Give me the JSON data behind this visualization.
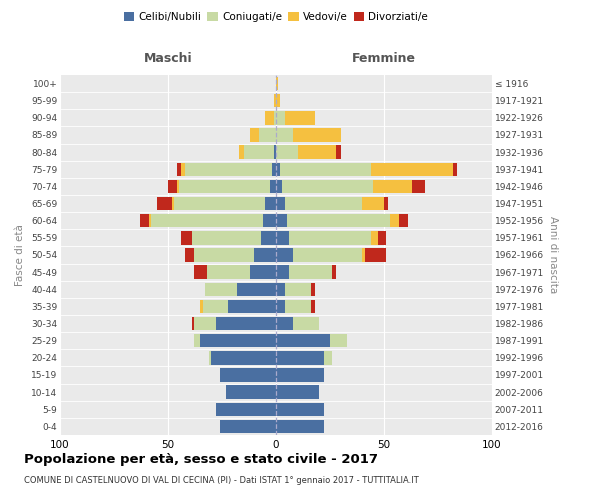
{
  "age_groups": [
    "0-4",
    "5-9",
    "10-14",
    "15-19",
    "20-24",
    "25-29",
    "30-34",
    "35-39",
    "40-44",
    "45-49",
    "50-54",
    "55-59",
    "60-64",
    "65-69",
    "70-74",
    "75-79",
    "80-84",
    "85-89",
    "90-94",
    "95-99",
    "100+"
  ],
  "birth_years": [
    "2012-2016",
    "2007-2011",
    "2002-2006",
    "1997-2001",
    "1992-1996",
    "1987-1991",
    "1982-1986",
    "1977-1981",
    "1972-1976",
    "1967-1971",
    "1962-1966",
    "1957-1961",
    "1952-1956",
    "1947-1951",
    "1942-1946",
    "1937-1941",
    "1932-1936",
    "1927-1931",
    "1922-1926",
    "1917-1921",
    "≤ 1916"
  ],
  "males": {
    "celibi": [
      26,
      28,
      23,
      26,
      30,
      35,
      28,
      22,
      18,
      12,
      10,
      7,
      6,
      5,
      3,
      2,
      1,
      0,
      0,
      0,
      0
    ],
    "coniugati": [
      0,
      0,
      0,
      0,
      1,
      3,
      10,
      12,
      15,
      20,
      28,
      32,
      52,
      42,
      42,
      40,
      14,
      8,
      1,
      0,
      0
    ],
    "vedovi": [
      0,
      0,
      0,
      0,
      0,
      0,
      0,
      1,
      0,
      0,
      0,
      0,
      1,
      1,
      1,
      2,
      2,
      4,
      4,
      1,
      0
    ],
    "divorziati": [
      0,
      0,
      0,
      0,
      0,
      0,
      1,
      0,
      0,
      6,
      4,
      5,
      4,
      7,
      4,
      2,
      0,
      0,
      0,
      0,
      0
    ]
  },
  "females": {
    "nubili": [
      22,
      22,
      20,
      22,
      22,
      25,
      8,
      4,
      4,
      6,
      8,
      6,
      5,
      4,
      3,
      2,
      0,
      0,
      0,
      0,
      0
    ],
    "coniugate": [
      0,
      0,
      0,
      0,
      4,
      8,
      12,
      12,
      12,
      20,
      32,
      38,
      48,
      36,
      42,
      42,
      10,
      8,
      4,
      0,
      0
    ],
    "vedove": [
      0,
      0,
      0,
      0,
      0,
      0,
      0,
      0,
      0,
      0,
      1,
      3,
      4,
      10,
      18,
      38,
      18,
      22,
      14,
      2,
      1
    ],
    "divorziate": [
      0,
      0,
      0,
      0,
      0,
      0,
      0,
      2,
      2,
      2,
      10,
      4,
      4,
      2,
      6,
      2,
      2,
      0,
      0,
      0,
      0
    ]
  },
  "colors": {
    "celibi": "#4a6fa1",
    "coniugati": "#c8daa4",
    "vedovi": "#f5c040",
    "divorziati": "#c0281c"
  },
  "title": "Popolazione per età, sesso e stato civile - 2017",
  "subtitle": "COMUNE DI CASTELNUOVO DI VAL DI CECINA (PI) - Dati ISTAT 1° gennaio 2017 - TUTTITALIA.IT",
  "xlabel_left": "Maschi",
  "xlabel_right": "Femmine",
  "ylabel_left": "Fasce di età",
  "ylabel_right": "Anni di nascita",
  "xlim": 100,
  "bg_color": "#eaeaea",
  "grid_color": "#ffffff"
}
